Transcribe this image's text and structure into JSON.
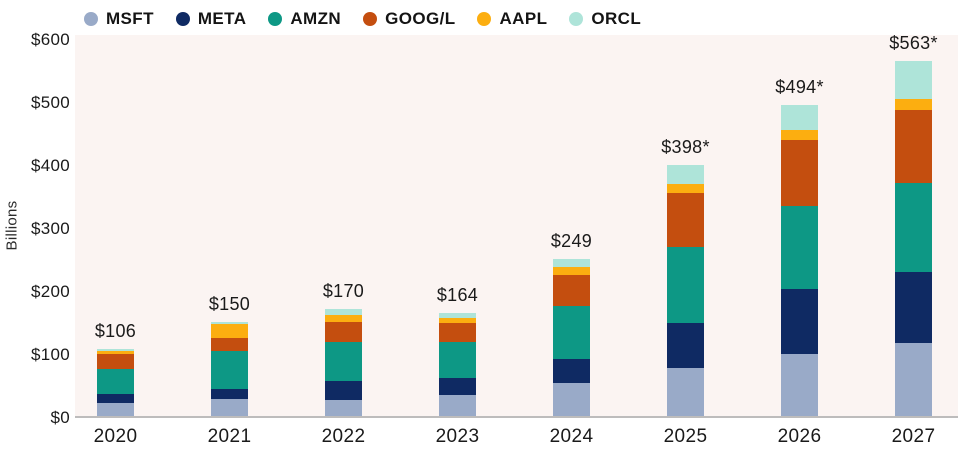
{
  "chart_data": {
    "type": "bar",
    "stacked": true,
    "ylabel": "Billions",
    "categories": [
      "2020",
      "2021",
      "2022",
      "2023",
      "2024",
      "2025",
      "2026",
      "2027"
    ],
    "series": [
      {
        "name": "MSFT",
        "color": "#99aac8",
        "values": [
          20,
          27,
          26,
          33,
          53,
          77,
          98,
          116
        ]
      },
      {
        "name": "META",
        "color": "#0f2a63",
        "values": [
          15,
          16,
          29,
          28,
          38,
          70,
          103,
          112
        ]
      },
      {
        "name": "AMZN",
        "color": "#0d9885",
        "values": [
          40,
          60,
          62,
          56,
          84,
          121,
          132,
          142
        ]
      },
      {
        "name": "GOOG/L",
        "color": "#c44e0f",
        "values": [
          24,
          21,
          32,
          31,
          49,
          86,
          105,
          115
        ]
      },
      {
        "name": "AAPL",
        "color": "#fcae10",
        "values": [
          5,
          22,
          11,
          8,
          12,
          15,
          16,
          18
        ]
      },
      {
        "name": "ORCL",
        "color": "#aee4d9",
        "values": [
          2,
          4,
          10,
          8,
          13,
          29,
          40,
          60
        ]
      }
    ],
    "totals": [
      106,
      150,
      170,
      164,
      249,
      398,
      494,
      563
    ],
    "total_labels": [
      "$106",
      "$150",
      "$170",
      "$164",
      "$249",
      "$398*",
      "$494*",
      "$563*"
    ],
    "yticks": [
      {
        "value": 0,
        "label": "$0"
      },
      {
        "value": 100,
        "label": "$100"
      },
      {
        "value": 200,
        "label": "$200"
      },
      {
        "value": 300,
        "label": "$300"
      },
      {
        "value": 400,
        "label": "$400"
      },
      {
        "value": 500,
        "label": "$500"
      },
      {
        "value": 600,
        "label": "$600"
      }
    ],
    "ylim": [
      0,
      600
    ],
    "grid": false,
    "legend_position": "top",
    "plot_background": "#fbf4f2",
    "axis_line_color": "#bdbcbc"
  }
}
